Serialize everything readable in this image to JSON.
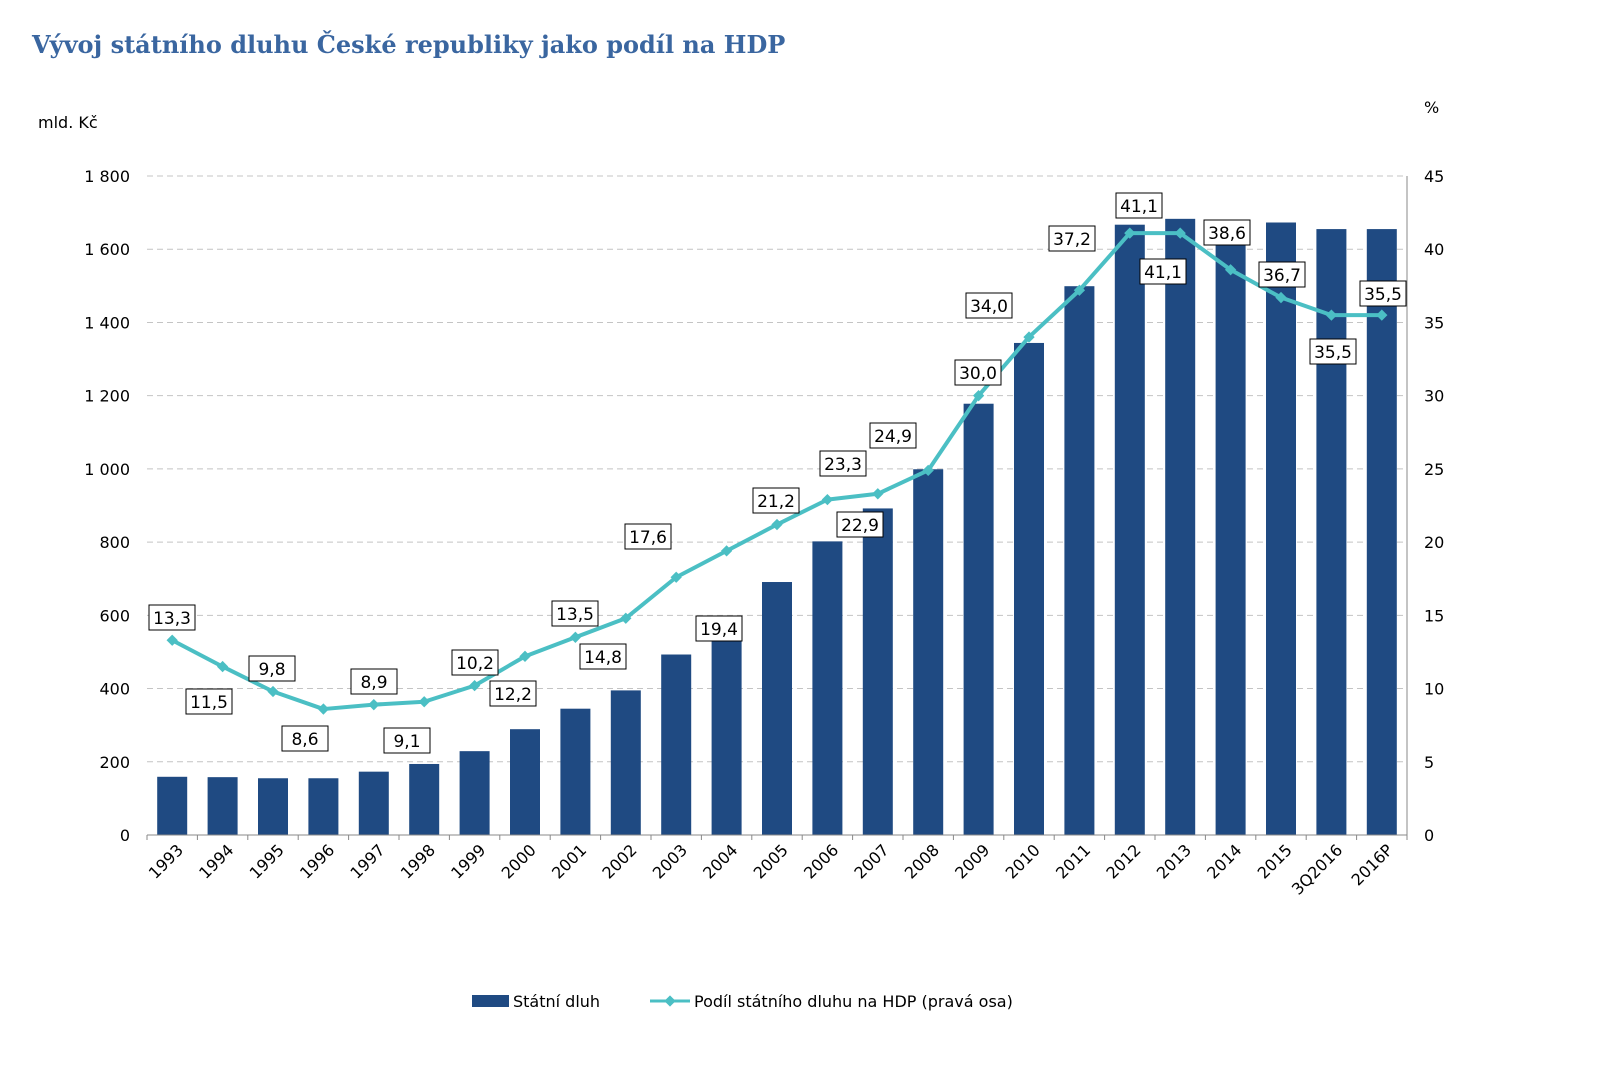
{
  "chart_data": {
    "type": "bar+line",
    "title": "Vývoj státního dluhu České republiky jako podíl na HDP",
    "ylabel_left": "mld. Kč",
    "ylabel_right": "%",
    "ylim_left": [
      0,
      1800
    ],
    "ylim_right": [
      0,
      45
    ],
    "yticks_left": [
      "0",
      "200",
      "400",
      "600",
      "800",
      "1 000",
      "1 200",
      "1 400",
      "1 600",
      "1 800"
    ],
    "yticks_right": [
      "0",
      "5",
      "10",
      "15",
      "20",
      "25",
      "30",
      "35",
      "40",
      "45"
    ],
    "grid": true,
    "legend_position": "bottom",
    "categories": [
      "1993",
      "1994",
      "1995",
      "1996",
      "1997",
      "1998",
      "1999",
      "2000",
      "2001",
      "2002",
      "2003",
      "2004",
      "2005",
      "2006",
      "2007",
      "2008",
      "2009",
      "2010",
      "2011",
      "2012",
      "2013",
      "2014",
      "2015",
      "3Q2016",
      "2016P"
    ],
    "series": [
      {
        "name": "Státní dluh",
        "type": "bar",
        "axis": "left",
        "color": "#1f4a82",
        "values": [
          159,
          158,
          155,
          155,
          173,
          194,
          229,
          289,
          345,
          395,
          493,
          592,
          691,
          802,
          892,
          999,
          1178,
          1344,
          1499,
          1667,
          1683,
          1663,
          1673,
          1655,
          1655
        ]
      },
      {
        "name": "Podíl státního dluhu na HDP (pravá osa)",
        "type": "line",
        "axis": "right",
        "color": "#4bbfc4",
        "values": [
          13.3,
          11.5,
          9.8,
          8.6,
          8.9,
          9.1,
          10.2,
          12.2,
          13.5,
          14.8,
          17.6,
          19.4,
          21.2,
          22.9,
          23.3,
          24.9,
          30.0,
          34.0,
          37.2,
          41.1,
          41.1,
          38.6,
          36.7,
          35.5,
          35.5
        ],
        "labels": [
          "13,3",
          "11,5",
          "9,8",
          "8,6",
          "8,9",
          "9,1",
          "10,2",
          "12,2",
          "13,5",
          "14,8",
          "17,6",
          "19,4",
          "21,2",
          "22,9",
          "23,3",
          "24,9",
          "30,0",
          "34,0",
          "37,2",
          "41,1",
          "41,1",
          "38,6",
          "36,7",
          "35,5",
          "35,5"
        ]
      }
    ]
  }
}
